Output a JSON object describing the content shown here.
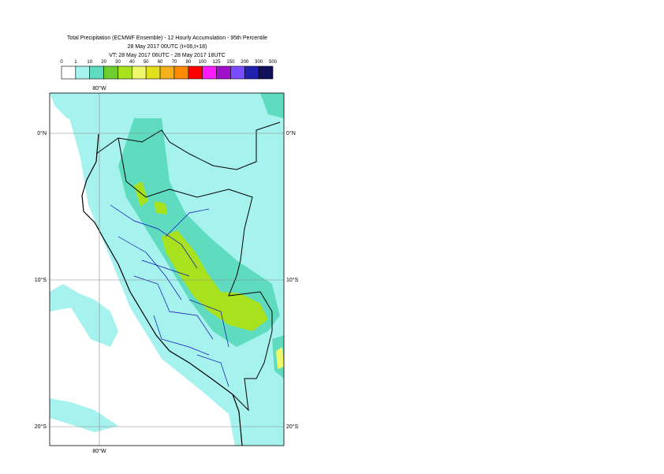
{
  "header": {
    "title": [
      "Total Precipitation (ECMWF Ensemble) - 12 Hourly Accumulation - 95th Percentile",
      "28 May 2017 00UTC (t+06,t+18)",
      "VT: 28 May 2017 06UTC - 28 May 2017 18UTC"
    ]
  },
  "legend": {
    "labels": [
      0,
      1,
      10,
      20,
      30,
      40,
      50,
      60,
      70,
      80,
      100,
      125,
      150,
      200,
      300,
      500
    ],
    "colors": [
      "#ffffff",
      "#a6f2ee",
      "#5fdcc0",
      "#6fcf2c",
      "#a8e21e",
      "#eef86a",
      "#e2e01a",
      "#f5b11a",
      "#ff8a00",
      "#ff0000",
      "#ff1aff",
      "#a010c8",
      "#7a4cff",
      "#2020b0",
      "#10105a"
    ]
  },
  "map": {
    "lon_labels": [
      "80°W",
      "80°W"
    ],
    "lat_labels": [
      "0°N",
      "10°S",
      "20°S"
    ]
  }
}
